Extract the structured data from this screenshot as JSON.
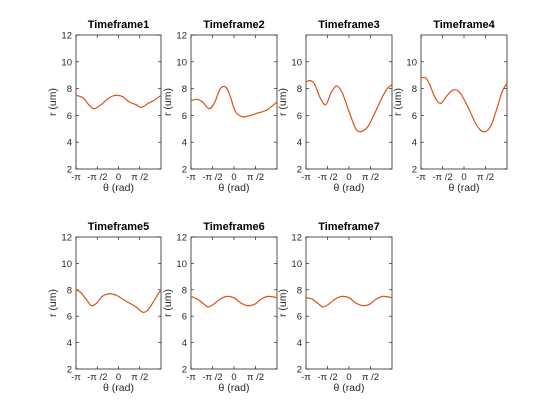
{
  "chart_data": [
    {
      "type": "line",
      "title": "Timeframe1",
      "xlabel": "θ (rad)",
      "ylabel": "r (um)",
      "xlim": [
        -3.1416,
        3.1416
      ],
      "ylim": [
        2,
        12
      ],
      "yticks": [
        2,
        4,
        6,
        8,
        10,
        12
      ],
      "xticks": [
        -3.1416,
        -1.5708,
        0,
        1.5708
      ],
      "xtick_labels": [
        "-π",
        "-π /2",
        "0",
        "π /2"
      ],
      "color": "#d95319",
      "x": [
        -3.14,
        -2.6,
        -2.2,
        -1.8,
        -1.3,
        -0.7,
        -0.2,
        0.3,
        0.8,
        1.3,
        1.7,
        2.2,
        2.6,
        3.14
      ],
      "y": [
        7.5,
        7.3,
        6.8,
        6.5,
        6.8,
        7.3,
        7.5,
        7.4,
        7.0,
        6.8,
        6.6,
        6.9,
        7.1,
        7.5
      ]
    },
    {
      "type": "line",
      "title": "Timeframe2",
      "xlabel": "θ (rad)",
      "ylabel": "r (um)",
      "xlim": [
        -3.1416,
        3.1416
      ],
      "ylim": [
        2,
        12
      ],
      "yticks": [
        2,
        4,
        6,
        8,
        10,
        12
      ],
      "xticks": [
        -3.1416,
        -1.5708,
        0,
        1.5708
      ],
      "xtick_labels": [
        "-π",
        "-π /2",
        "0",
        "π /2"
      ],
      "color": "#d95319",
      "x": [
        -3.14,
        -2.7,
        -2.3,
        -1.8,
        -1.4,
        -1.0,
        -0.6,
        -0.3,
        0.1,
        0.6,
        1.2,
        1.8,
        2.4,
        3.14
      ],
      "y": [
        7.1,
        7.2,
        7.0,
        6.5,
        7.0,
        8.0,
        8.1,
        7.5,
        6.3,
        5.9,
        6.0,
        6.2,
        6.4,
        7.0
      ]
    },
    {
      "type": "line",
      "title": "Timeframe3",
      "xlabel": "θ (rad)",
      "ylabel": "r (um)",
      "xlim": [
        -3.1416,
        3.1416
      ],
      "ylim": [
        2,
        12
      ],
      "yticks": [
        2,
        4,
        6,
        8,
        10
      ],
      "xticks": [
        -3.1416,
        -1.5708,
        0,
        1.5708
      ],
      "xtick_labels": [
        "-π",
        "-π /2",
        "0",
        "π /2"
      ],
      "color": "#d95319",
      "x": [
        -3.14,
        -2.8,
        -2.5,
        -2.1,
        -1.7,
        -1.3,
        -0.9,
        -0.5,
        0.0,
        0.5,
        0.9,
        1.4,
        1.9,
        2.4,
        2.8,
        3.14
      ],
      "y": [
        8.5,
        8.6,
        8.3,
        7.3,
        6.8,
        7.7,
        8.2,
        7.7,
        6.3,
        5.0,
        4.8,
        5.2,
        6.2,
        7.3,
        8.0,
        8.3
      ]
    },
    {
      "type": "line",
      "title": "Timeframe4",
      "xlabel": "θ (rad)",
      "ylabel": "r (um)",
      "xlim": [
        -3.1416,
        3.1416
      ],
      "ylim": [
        2,
        12
      ],
      "yticks": [
        2,
        4,
        6,
        8,
        10
      ],
      "xticks": [
        -3.1416,
        -1.5708,
        0,
        1.5708
      ],
      "xtick_labels": [
        "-π",
        "-π /2",
        "0",
        "π /2"
      ],
      "color": "#d95319",
      "x": [
        -3.14,
        -2.8,
        -2.5,
        -2.1,
        -1.7,
        -1.3,
        -0.8,
        -0.3,
        0.3,
        0.8,
        1.2,
        1.6,
        2.0,
        2.4,
        2.8,
        3.14
      ],
      "y": [
        8.8,
        8.8,
        8.3,
        7.3,
        6.9,
        7.4,
        7.9,
        7.7,
        6.6,
        5.5,
        4.9,
        4.8,
        5.3,
        6.5,
        7.8,
        8.4
      ]
    },
    {
      "type": "line",
      "title": "Timeframe5",
      "xlabel": "θ (rad)",
      "ylabel": "r (um)",
      "xlim": [
        -3.1416,
        3.1416
      ],
      "ylim": [
        2,
        12
      ],
      "yticks": [
        2,
        4,
        6,
        8,
        10,
        12
      ],
      "xticks": [
        -3.1416,
        -1.5708,
        0,
        1.5708
      ],
      "xtick_labels": [
        "-π",
        "-π /2",
        "0",
        "π /2"
      ],
      "color": "#d95319",
      "x": [
        -3.14,
        -2.8,
        -2.4,
        -2.0,
        -1.6,
        -1.2,
        -0.7,
        -0.2,
        0.3,
        0.8,
        1.3,
        1.8,
        2.2,
        2.7,
        3.14
      ],
      "y": [
        8.0,
        7.8,
        7.3,
        6.8,
        7.0,
        7.5,
        7.7,
        7.6,
        7.3,
        7.0,
        6.7,
        6.3,
        6.5,
        7.3,
        8.0
      ]
    },
    {
      "type": "line",
      "title": "Timeframe6",
      "xlabel": "θ (rad)",
      "ylabel": "r (um)",
      "xlim": [
        -3.1416,
        3.1416
      ],
      "ylim": [
        2,
        12
      ],
      "yticks": [
        2,
        4,
        6,
        8,
        10,
        12
      ],
      "xticks": [
        -3.1416,
        -1.5708,
        0,
        1.5708
      ],
      "xtick_labels": [
        "-π",
        "-π /2",
        "0",
        "π /2"
      ],
      "color": "#d95319",
      "x": [
        -3.14,
        -2.7,
        -2.3,
        -1.9,
        -1.5,
        -1.0,
        -0.5,
        0.0,
        0.5,
        1.0,
        1.5,
        2.0,
        2.5,
        3.14
      ],
      "y": [
        7.5,
        7.3,
        7.0,
        6.7,
        6.9,
        7.3,
        7.5,
        7.4,
        7.0,
        6.8,
        6.9,
        7.3,
        7.5,
        7.4
      ]
    },
    {
      "type": "line",
      "title": "Timeframe7",
      "xlabel": "θ (rad)",
      "ylabel": "r (um)",
      "xlim": [
        -3.1416,
        3.1416
      ],
      "ylim": [
        2,
        12
      ],
      "yticks": [
        2,
        4,
        6,
        8,
        10,
        12
      ],
      "xticks": [
        -3.1416,
        -1.5708,
        0,
        1.5708
      ],
      "xtick_labels": [
        "-π",
        "-π /2",
        "0",
        "π /2"
      ],
      "color": "#d95319",
      "x": [
        -3.14,
        -2.7,
        -2.3,
        -1.9,
        -1.5,
        -1.0,
        -0.5,
        0.0,
        0.5,
        1.0,
        1.5,
        2.0,
        2.5,
        3.14
      ],
      "y": [
        7.4,
        7.3,
        7.0,
        6.7,
        6.9,
        7.3,
        7.5,
        7.4,
        7.0,
        6.8,
        6.9,
        7.3,
        7.5,
        7.4
      ]
    }
  ]
}
